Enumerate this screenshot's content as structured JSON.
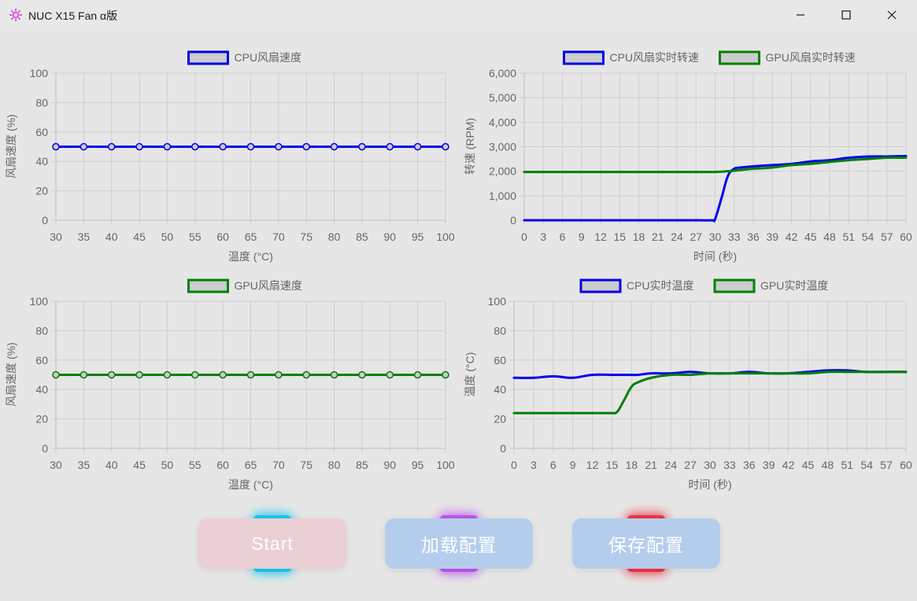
{
  "window": {
    "title": "NUC X15 Fan α版",
    "icons": {
      "app": "sparkle-icon",
      "minimize": "minimize-icon",
      "maximize": "maximize-icon",
      "close": "close-icon"
    }
  },
  "colors": {
    "cpu": "#0000ee",
    "gpu": "#008000",
    "legend_fill": "#cccccc",
    "grid": "#cfcfcf"
  },
  "chart_data": [
    {
      "type": "line",
      "title": "",
      "xlabel": "温度 (°C)",
      "ylabel": "风扇速度 (%)",
      "x": [
        30,
        35,
        40,
        45,
        50,
        55,
        60,
        65,
        70,
        75,
        80,
        85,
        90,
        95,
        100
      ],
      "ylim": [
        0,
        100
      ],
      "yticks": [
        0,
        20,
        40,
        60,
        80,
        100
      ],
      "legend_position": "top",
      "series": [
        {
          "name": "CPU风扇速度",
          "color": "#0000ee",
          "markers": true,
          "values": [
            50,
            50,
            50,
            50,
            50,
            50,
            50,
            50,
            50,
            50,
            50,
            50,
            50,
            50,
            50
          ]
        }
      ]
    },
    {
      "type": "line",
      "title": "",
      "xlabel": "时间 (秒)",
      "ylabel": "转速 (RPM)",
      "x": [
        0,
        3,
        6,
        9,
        12,
        15,
        18,
        21,
        24,
        27,
        29.5,
        30,
        31,
        32,
        33,
        34,
        36,
        39,
        42,
        45,
        48,
        51,
        54,
        57,
        60
      ],
      "ylim": [
        0,
        6000
      ],
      "yticks": [
        0,
        1000,
        2000,
        3000,
        4000,
        5000,
        6000
      ],
      "ytick_labels": [
        "0",
        "1,000",
        "2,000",
        "3,000",
        "4,000",
        "5,000",
        "6,000"
      ],
      "xticks": [
        0,
        3,
        6,
        9,
        12,
        15,
        18,
        21,
        24,
        27,
        30,
        33,
        36,
        39,
        42,
        45,
        48,
        51,
        54,
        57,
        60
      ],
      "legend_position": "top",
      "series": [
        {
          "name": "CPU风扇实时转速",
          "color": "#0000ee",
          "markers": false,
          "values": [
            0,
            0,
            0,
            0,
            0,
            0,
            0,
            0,
            0,
            0,
            0,
            50,
            900,
            1800,
            2100,
            2150,
            2200,
            2250,
            2300,
            2400,
            2450,
            2550,
            2600,
            2600,
            2620
          ]
        },
        {
          "name": "GPU风扇实时转速",
          "color": "#008000",
          "markers": false,
          "values": [
            1970,
            1970,
            1970,
            1970,
            1970,
            1970,
            1970,
            1970,
            1970,
            1970,
            1970,
            1970,
            1980,
            2000,
            2020,
            2050,
            2100,
            2150,
            2250,
            2300,
            2380,
            2450,
            2500,
            2550,
            2550
          ]
        }
      ]
    },
    {
      "type": "line",
      "title": "",
      "xlabel": "温度 (°C)",
      "ylabel": "风扇速度 (%)",
      "x": [
        30,
        35,
        40,
        45,
        50,
        55,
        60,
        65,
        70,
        75,
        80,
        85,
        90,
        95,
        100
      ],
      "ylim": [
        0,
        100
      ],
      "yticks": [
        0,
        20,
        40,
        60,
        80,
        100
      ],
      "legend_position": "top",
      "series": [
        {
          "name": "GPU风扇速度",
          "color": "#008000",
          "markers": true,
          "values": [
            50,
            50,
            50,
            50,
            50,
            50,
            50,
            50,
            50,
            50,
            50,
            50,
            50,
            50,
            50
          ]
        }
      ]
    },
    {
      "type": "line",
      "title": "",
      "xlabel": "时间 (秒)",
      "ylabel": "温度 (°C)",
      "x": [
        0,
        3,
        6,
        9,
        12,
        15,
        15.5,
        16,
        17,
        18,
        19,
        21,
        24,
        27,
        30,
        33,
        36,
        39,
        42,
        45,
        48,
        51,
        54,
        57,
        60
      ],
      "ylim": [
        0,
        100
      ],
      "yticks": [
        0,
        20,
        40,
        60,
        80,
        100
      ],
      "xticks": [
        0,
        3,
        6,
        9,
        12,
        15,
        18,
        21,
        24,
        27,
        30,
        33,
        36,
        39,
        42,
        45,
        48,
        51,
        54,
        57,
        60
      ],
      "legend_position": "top",
      "series": [
        {
          "name": "CPU实时温度",
          "color": "#0000ee",
          "markers": false,
          "values": [
            48,
            48,
            49,
            48,
            50,
            50,
            50,
            50,
            50,
            50,
            50,
            51,
            51,
            52,
            51,
            51,
            52,
            51,
            51,
            52,
            53,
            53,
            52,
            52,
            52
          ]
        },
        {
          "name": "GPU实时温度",
          "color": "#008000",
          "markers": false,
          "values": [
            24,
            24,
            24,
            24,
            24,
            24,
            24,
            26,
            34,
            42,
            45,
            48,
            50,
            50,
            51,
            51,
            51,
            51,
            51,
            51,
            52,
            52,
            52,
            52,
            52
          ]
        }
      ]
    }
  ],
  "buttons": {
    "start": {
      "label": "Start",
      "bg": "#eacfd5",
      "glow": "#19c8f0"
    },
    "load": {
      "label": "加载配置",
      "bg": "#b5cdec",
      "glow": "#bb55ee"
    },
    "save": {
      "label": "保存配置",
      "bg": "#b5cdec",
      "glow": "#ee3344"
    }
  }
}
